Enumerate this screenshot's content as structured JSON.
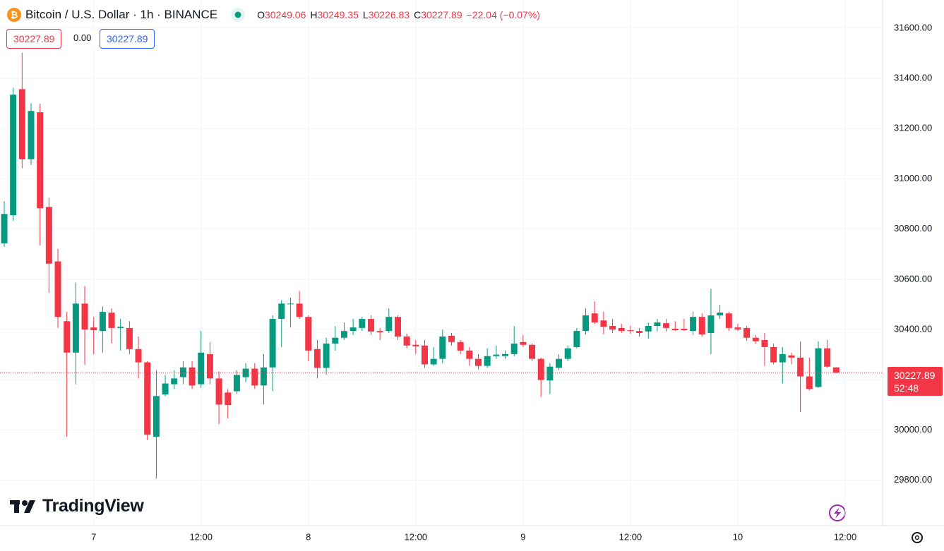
{
  "chart_data": {
    "type": "candlestick",
    "title": "Bitcoin / U.S. Dollar · 1h · BINANCE",
    "ohlc_labels": [
      "O",
      "H",
      "L",
      "C"
    ],
    "change": "−22.04 (−0.07%)",
    "spread": "0.00",
    "countdown": "52:48",
    "watermark": "TradingView",
    "up_color": "#089981",
    "down_color": "#f23645",
    "grid": true,
    "ylim": [
      29619,
      31712
    ],
    "yticks": [
      {
        "value": 29800,
        "label": "29800.00"
      },
      {
        "value": 30000,
        "label": "30000.00"
      },
      {
        "value": 30200,
        "label": "30200.00"
      },
      {
        "value": 30400,
        "label": "30400.00"
      },
      {
        "value": 30600,
        "label": "30600.00"
      },
      {
        "value": 30800,
        "label": "30800.00"
      },
      {
        "value": 31000,
        "label": "31000.00"
      },
      {
        "value": 31200,
        "label": "31200.00"
      },
      {
        "value": 31400,
        "label": "31400.00"
      },
      {
        "value": 31600,
        "label": "31600.00"
      }
    ],
    "categories": [
      null,
      null,
      null,
      null,
      null,
      null,
      null,
      null,
      null,
      null,
      "7",
      null,
      null,
      null,
      null,
      null,
      null,
      null,
      null,
      null,
      null,
      null,
      "12:00",
      null,
      null,
      null,
      null,
      null,
      null,
      null,
      null,
      null,
      null,
      null,
      "8",
      null,
      null,
      null,
      null,
      null,
      null,
      null,
      null,
      null,
      null,
      null,
      "12:00",
      null,
      null,
      null,
      null,
      null,
      null,
      null,
      null,
      null,
      null,
      null,
      "9",
      null,
      null,
      null,
      null,
      null,
      null,
      null,
      null,
      null,
      null,
      null,
      "12:00",
      null,
      null,
      null,
      null,
      null,
      null,
      null,
      null,
      null,
      null,
      null,
      "10",
      null,
      null,
      null,
      null,
      null,
      null,
      null,
      null,
      null,
      null,
      null,
      "12:00"
    ],
    "open": [
      30743,
      30855,
      31357,
      31078,
      31265,
      30888,
      30671,
      30433,
      30308,
      30503,
      30408,
      30394,
      30467,
      30406,
      30406,
      30322,
      30269,
      29973,
      30141,
      30182,
      30210,
      30249,
      30182,
      30302,
      30205,
      30149,
      30154,
      30210,
      30244,
      30177,
      30249,
      30442,
      30501,
      30503,
      30450,
      30322,
      30247,
      30344,
      30367,
      30394,
      30406,
      30442,
      30394,
      30394,
      30450,
      30372,
      30339,
      30336,
      30261,
      30283,
      30375,
      30350,
      30316,
      30283,
      30255,
      30294,
      30294,
      30302,
      30350,
      30339,
      30283,
      30197,
      30247,
      30283,
      30330,
      30394,
      30464,
      30436,
      30414,
      30406,
      30397,
      30394,
      30392,
      30414,
      30425,
      30403,
      30403,
      30394,
      30450,
      30386,
      30456,
      30464,
      30408,
      30406,
      30367,
      30358,
      30330,
      30269,
      30297,
      30288,
      30213,
      30171,
      30325,
      30249.06,
      null
    ],
    "high": [
      30911,
      31363,
      31502,
      31301,
      31299,
      30925,
      30721,
      30470,
      30587,
      30573,
      30450,
      30492,
      30484,
      30442,
      30433,
      30372,
      30274,
      30238,
      30219,
      30238,
      30274,
      30274,
      30394,
      30350,
      30233,
      30163,
      30238,
      30266,
      30266,
      30302,
      30456,
      30517,
      30526,
      30553,
      30456,
      30358,
      30367,
      30414,
      30428,
      30442,
      30450,
      30456,
      30406,
      30484,
      30456,
      30383,
      30358,
      30358,
      30330,
      30400,
      30386,
      30358,
      30330,
      30302,
      30325,
      30336,
      30316,
      30414,
      30378,
      30344,
      30288,
      30266,
      30302,
      30336,
      30406,
      30484,
      30512,
      30470,
      30442,
      30422,
      30414,
      30406,
      30428,
      30442,
      30442,
      30433,
      30442,
      30470,
      30464,
      30562,
      30498,
      30470,
      30422,
      30414,
      30378,
      30386,
      30344,
      30330,
      30308,
      30353,
      30288,
      30353,
      30358,
      30249.35,
      null
    ],
    "low": [
      30729,
      30833,
      31042,
      31056,
      30735,
      30545,
      30406,
      29973,
      30182,
      30260,
      30302,
      30308,
      30344,
      30316,
      30302,
      30205,
      29959,
      29806,
      30135,
      30163,
      30182,
      30163,
      30168,
      30182,
      30023,
      30046,
      30143,
      30191,
      30163,
      30101,
      30154,
      30330,
      30408,
      30442,
      30274,
      30205,
      30219,
      30316,
      30358,
      30378,
      30394,
      30378,
      30358,
      30386,
      30358,
      30325,
      30302,
      30247,
      30255,
      30266,
      30336,
      30302,
      30255,
      30241,
      30247,
      30283,
      30283,
      30294,
      30330,
      30274,
      30132,
      30143,
      30238,
      30274,
      30325,
      30380,
      30422,
      30380,
      30386,
      30386,
      30383,
      30372,
      30364,
      30392,
      30392,
      30394,
      30394,
      30378,
      30372,
      30302,
      30442,
      30394,
      30394,
      30355,
      30344,
      30255,
      30261,
      30185,
      30261,
      30071,
      30157,
      30168,
      30247,
      30226.83,
      null
    ],
    "close": [
      30860,
      31335,
      31078,
      31270,
      30883,
      30662,
      30450,
      30308,
      30503,
      30400,
      30397,
      30470,
      30406,
      30411,
      30322,
      30269,
      29981,
      30135,
      30185,
      30205,
      30249,
      30177,
      30308,
      30205,
      30101,
      30099,
      30219,
      30244,
      30177,
      30249,
      30442,
      30503,
      30503,
      30450,
      30316,
      30247,
      30344,
      30367,
      30394,
      30408,
      30442,
      30392,
      30389,
      30450,
      30372,
      30336,
      30333,
      30261,
      30283,
      30372,
      30350,
      30316,
      30283,
      30255,
      30294,
      30300,
      30302,
      30344,
      30339,
      30283,
      30199,
      30252,
      30283,
      30325,
      30394,
      30456,
      30428,
      30411,
      30400,
      30394,
      30394,
      30386,
      30414,
      30428,
      30406,
      30397,
      30397,
      30450,
      30380,
      30456,
      30467,
      30406,
      30400,
      30367,
      30353,
      30330,
      30269,
      30302,
      30288,
      30213,
      30163,
      30325,
      30252,
      30227.89,
      null
    ]
  }
}
